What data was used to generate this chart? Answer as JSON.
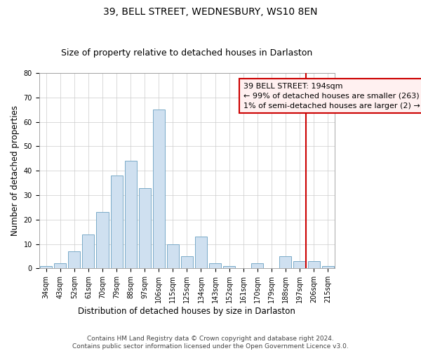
{
  "title": "39, BELL STREET, WEDNESBURY, WS10 8EN",
  "subtitle": "Size of property relative to detached houses in Darlaston",
  "xlabel": "Distribution of detached houses by size in Darlaston",
  "ylabel": "Number of detached properties",
  "footer1": "Contains HM Land Registry data © Crown copyright and database right 2024.",
  "footer2": "Contains public sector information licensed under the Open Government Licence v3.0.",
  "categories": [
    "34sqm",
    "43sqm",
    "52sqm",
    "61sqm",
    "70sqm",
    "79sqm",
    "88sqm",
    "97sqm",
    "106sqm",
    "115sqm",
    "125sqm",
    "134sqm",
    "143sqm",
    "152sqm",
    "161sqm",
    "170sqm",
    "179sqm",
    "188sqm",
    "197sqm",
    "206sqm",
    "215sqm"
  ],
  "values": [
    1,
    2,
    7,
    14,
    23,
    38,
    44,
    33,
    65,
    10,
    5,
    13,
    2,
    1,
    0,
    2,
    0,
    5,
    3,
    3,
    1
  ],
  "bar_color": "#cfe0f0",
  "bar_edge_color": "#7aaac8",
  "highlight_line_index": 18,
  "highlight_line_color": "#cc0000",
  "annotation_text": "39 BELL STREET: 194sqm\n← 99% of detached houses are smaller (263)\n1% of semi-detached houses are larger (2) →",
  "annotation_box_facecolor": "#fff0f0",
  "annotation_box_edgecolor": "#cc0000",
  "bg_color": "#ffffff",
  "plot_bg_color": "#ffffff",
  "grid_color": "#cccccc",
  "ylim": [
    0,
    80
  ],
  "yticks": [
    0,
    10,
    20,
    30,
    40,
    50,
    60,
    70,
    80
  ],
  "title_fontsize": 10,
  "subtitle_fontsize": 9,
  "axis_label_fontsize": 8.5,
  "tick_fontsize": 7,
  "annotation_fontsize": 8,
  "footer_fontsize": 6.5
}
